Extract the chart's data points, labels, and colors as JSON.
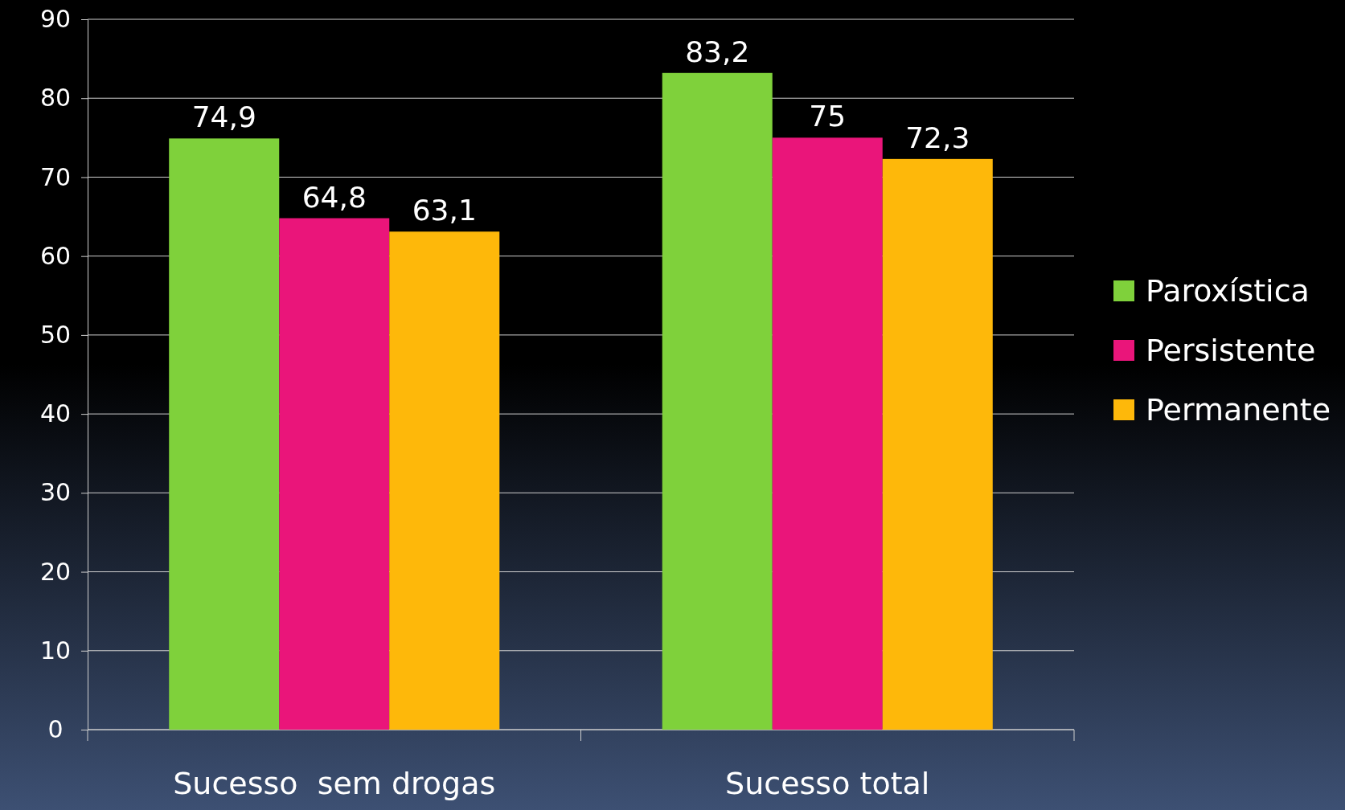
{
  "chart_data": {
    "type": "bar",
    "categories": [
      "Sucesso  sem drogas",
      "Sucesso total"
    ],
    "series": [
      {
        "name": "Paroxística",
        "color": "#7fd13b",
        "values": [
          74.9,
          83.2
        ],
        "value_labels": [
          "74,9",
          "83,2"
        ]
      },
      {
        "name": "Persistente",
        "color": "#ea157a",
        "values": [
          64.8,
          75
        ],
        "value_labels": [
          "64,8",
          "75"
        ]
      },
      {
        "name": "Permanente",
        "color": "#feb80a",
        "values": [
          63.1,
          72.3
        ],
        "value_labels": [
          "63,1",
          "72,3"
        ]
      }
    ],
    "ylim": [
      0,
      90
    ],
    "yticks": [
      0,
      10,
      20,
      30,
      40,
      50,
      60,
      70,
      80,
      90
    ],
    "grid": "y",
    "legend": "right"
  }
}
